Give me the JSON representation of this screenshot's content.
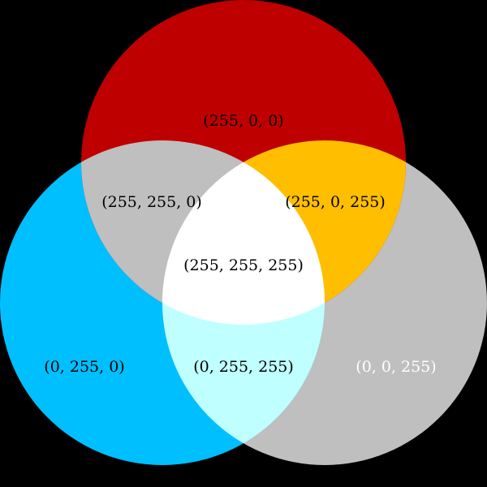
{
  "diagram": {
    "colors": {
      "background": "#000000",
      "top_circle": "#bf0000",
      "left_circle": "#00bfff",
      "right_circle": "#bfbfbf",
      "top_left_overlap": "#bfbfbf",
      "top_right_overlap": "#ffbf00",
      "left_right_overlap": "#bfffff",
      "center_overlap": "#ffffff",
      "label_dark": "#000000",
      "label_light": "#ffffff"
    },
    "labels": {
      "top_only": "(255, 0, 0)",
      "top_left": "(255, 255, 0)",
      "top_right": "(255, 0, 255)",
      "center": "(255, 255, 255)",
      "left_only": "(0, 255, 0)",
      "left_right": "(0, 255, 255)",
      "right_only": "(0, 0, 255)"
    }
  }
}
